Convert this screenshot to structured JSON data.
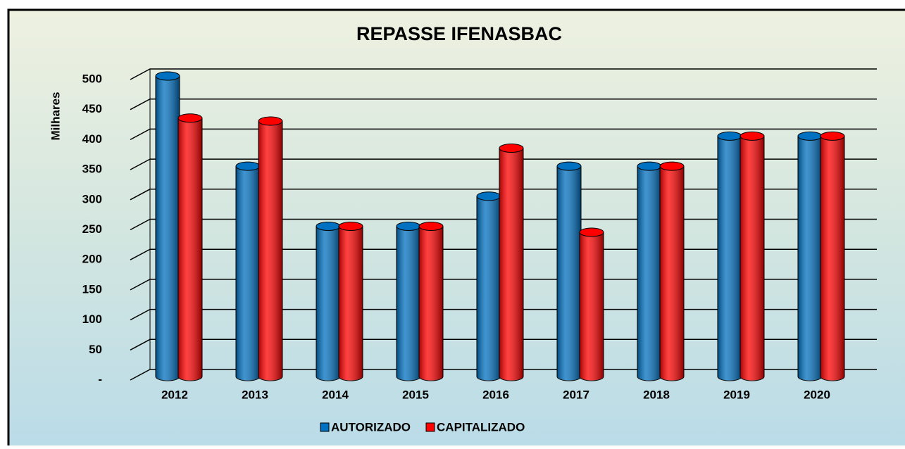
{
  "chart_data": {
    "type": "bar",
    "title": "REPASSE IFENASBAC",
    "y_label": "Milhares",
    "categories": [
      "2012",
      "2013",
      "2014",
      "2015",
      "2016",
      "2017",
      "2018",
      "2019",
      "2020"
    ],
    "series": [
      {
        "name": "AUTORIZADO",
        "color": "#0070c0",
        "values": [
          500,
          350,
          250,
          250,
          300,
          350,
          350,
          400,
          400
        ]
      },
      {
        "name": "CAPITALIZADO",
        "color": "#ff0000",
        "values": [
          430,
          425,
          250,
          250,
          380,
          240,
          350,
          400,
          400
        ]
      }
    ],
    "ylim": [
      0,
      500
    ],
    "yticks": [
      {
        "value": 0,
        "label": "-"
      },
      50,
      100,
      150,
      200,
      250,
      300,
      350,
      400,
      450,
      500
    ],
    "grid": true,
    "legend": "bottom"
  }
}
